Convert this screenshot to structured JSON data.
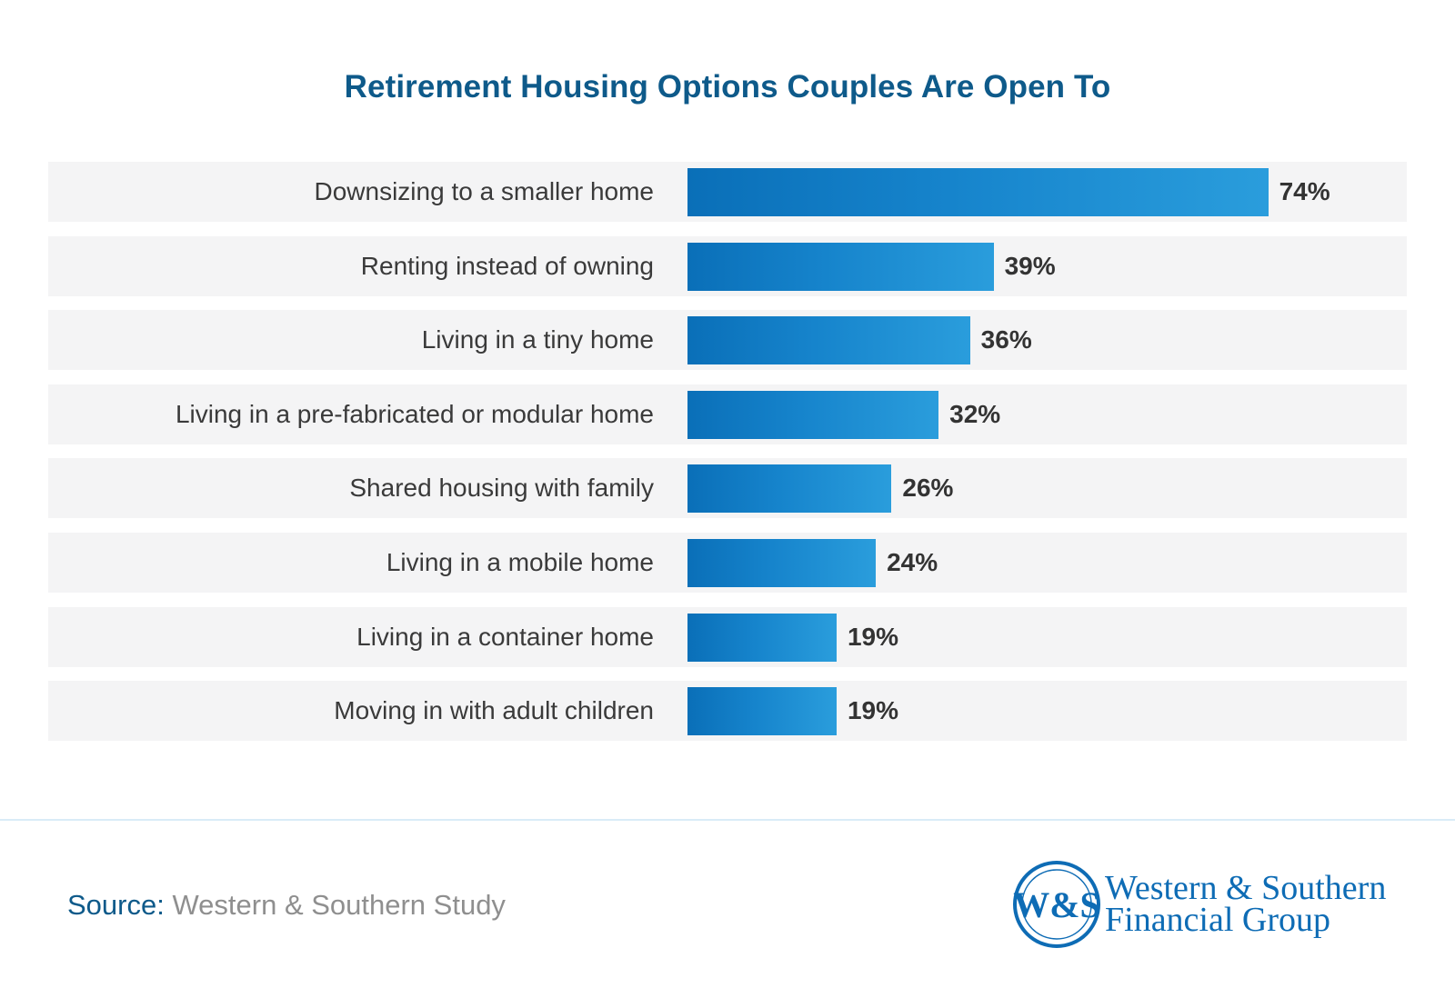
{
  "chart_data": {
    "type": "bar",
    "orientation": "horizontal",
    "title": "Retirement Housing Options Couples Are Open To",
    "categories": [
      "Downsizing to a smaller home",
      "Renting instead of owning",
      "Living in a tiny home",
      "Living in a pre-fabricated or modular home",
      "Shared housing with family",
      "Living in a mobile home",
      "Living in a container home",
      "Moving in with adult children"
    ],
    "values": [
      74,
      39,
      36,
      32,
      26,
      24,
      19,
      19
    ],
    "value_labels": [
      "74%",
      "39%",
      "36%",
      "32%",
      "26%",
      "24%",
      "19%",
      "19%"
    ],
    "unit": "%",
    "xlim": [
      0,
      100
    ],
    "grid": false,
    "colors": {
      "bar_start": "#0a6fb8",
      "bar_end": "#2a9ddc",
      "title": "#0e5a8a",
      "row_bg": "#f4f4f5"
    }
  },
  "source": {
    "label": "Source:",
    "text": "Western & Southern Study"
  },
  "logo": {
    "monogram": "W&S",
    "line1": "Western & Southern",
    "line2": "Financial Group",
    "color": "#0e6cb5"
  }
}
